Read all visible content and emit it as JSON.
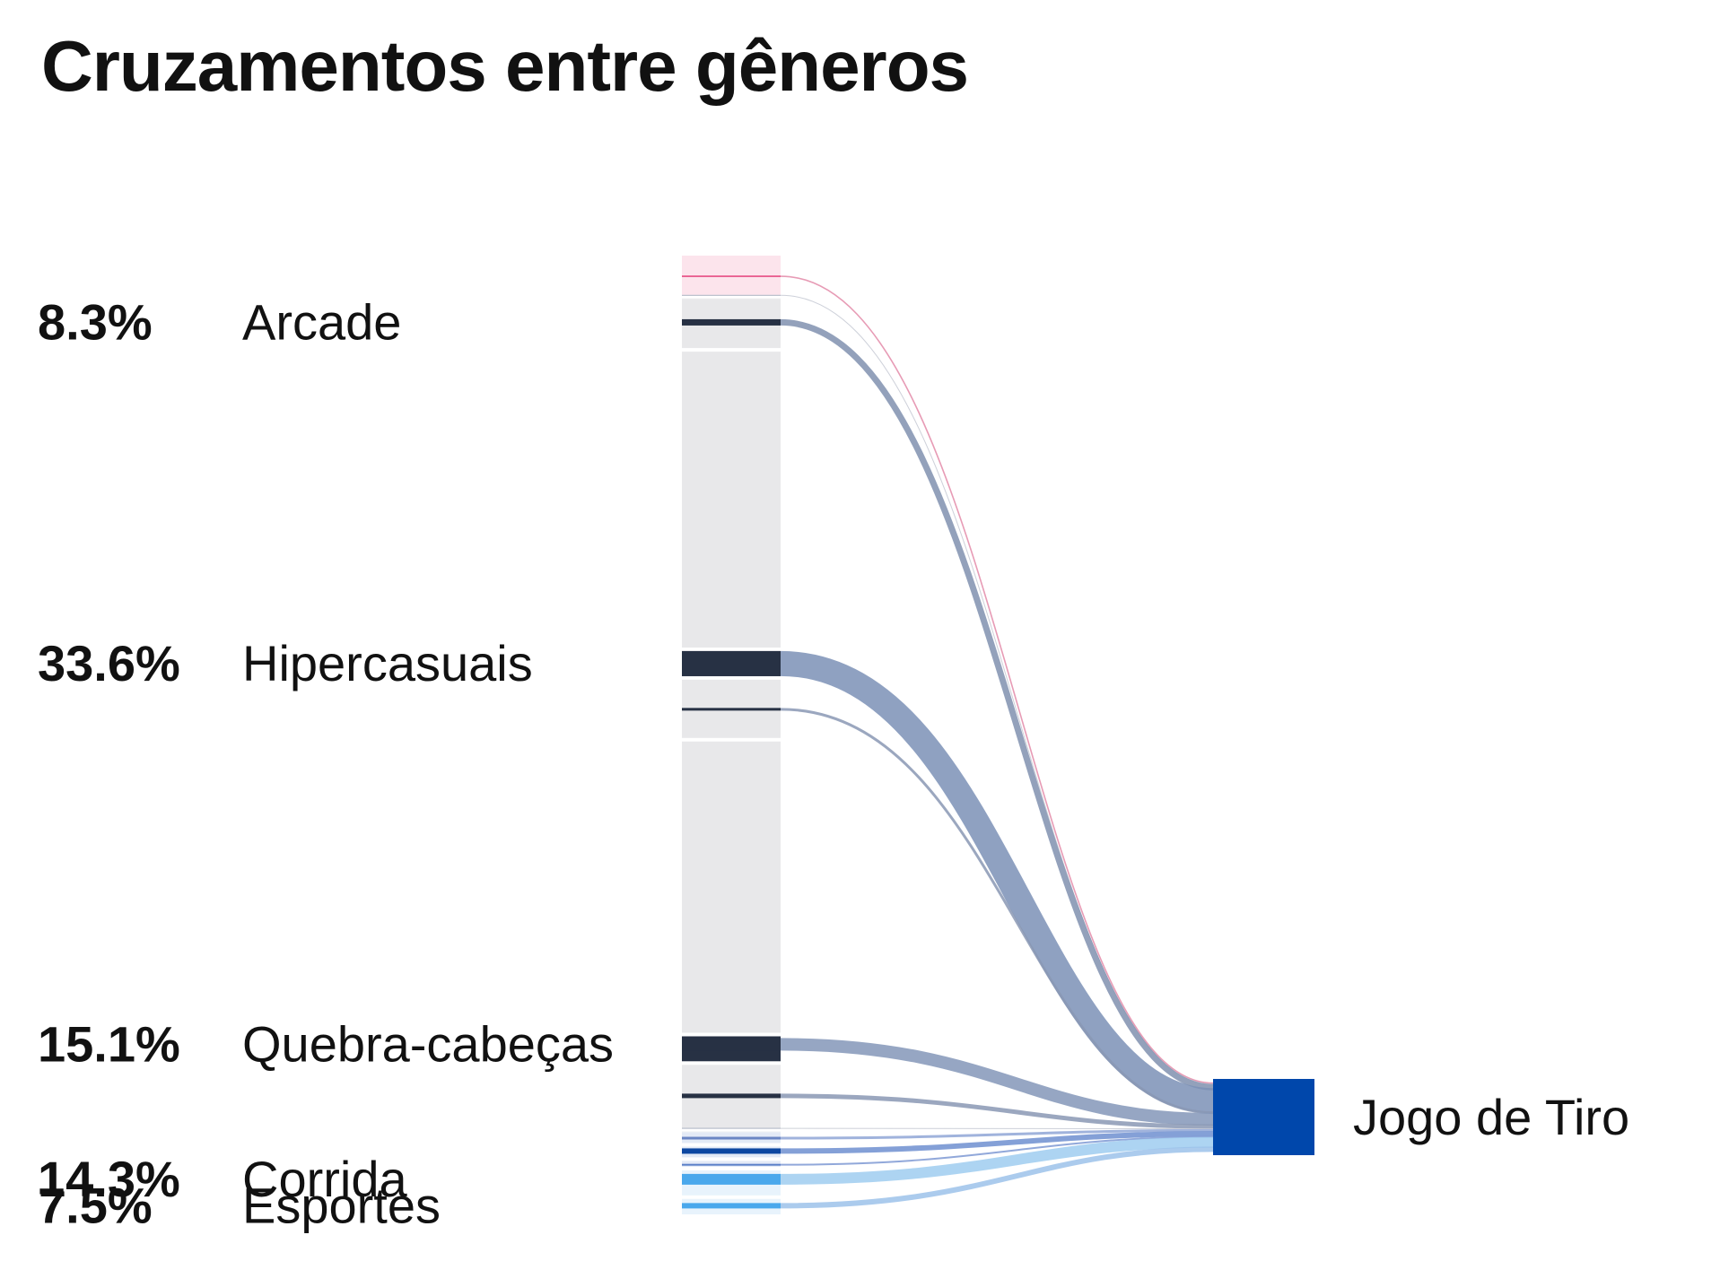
{
  "title": "Cruzamentos entre gêneros",
  "chart_data": {
    "type": "sankey",
    "title": "Cruzamentos entre gêneros",
    "target": {
      "label": "Jogo de Tiro",
      "color": "#0047ab"
    },
    "labeled_sources": [
      {
        "percent": "8.3%",
        "label": "Arcade"
      },
      {
        "percent": "33.6%",
        "label": "Hipercasuais"
      },
      {
        "percent": "15.1%",
        "label": "Quebra-cabeças"
      },
      {
        "percent": "14.3%",
        "label": "Corrida"
      },
      {
        "percent": "7.5%",
        "label": "Esportes"
      }
    ],
    "flows": [
      {
        "label": "",
        "percent": "",
        "value": 0.3,
        "group_value": 4.5,
        "color": "#e64980",
        "band_color": "#fce4ec",
        "link_color": "#e38aa8",
        "stroke": 1.6
      },
      {
        "label": "",
        "percent": "",
        "value": 0.1,
        "group_value": 0.1,
        "color": "#aab0c0",
        "band_color": "#e8e8ea",
        "link_color": "#c4c8d2",
        "stroke": 1
      },
      {
        "label": "Arcade",
        "percent": "8.3%",
        "value": 8.3,
        "group_value": 5.5,
        "color": "#273144",
        "band_color": "#e8e8ea",
        "link_color": "#8091af",
        "stroke": 7
      },
      {
        "label": "",
        "percent": "",
        "value": 0,
        "group_value": 31.5,
        "color": "#e8e8ea",
        "band_color": "#e8e8ea",
        "link_color": "#e8e8ea",
        "stroke": 0
      },
      {
        "label": "Hipercasuais",
        "percent": "33.6%",
        "value": 33.6,
        "group_value": 3,
        "color": "#273144",
        "band_color": "#273144",
        "link_color": "#7b90b6",
        "stroke": 28
      },
      {
        "label": "",
        "percent": "",
        "value": 1.5,
        "group_value": 6.5,
        "color": "#273144",
        "band_color": "#e8e8ea",
        "link_color": "#8a98b4",
        "stroke": 3
      },
      {
        "label": "",
        "percent": "",
        "value": 0,
        "group_value": 31,
        "color": "#e8e8ea",
        "band_color": "#e8e8ea",
        "link_color": "#e8e8ea",
        "stroke": 0
      },
      {
        "label": "Quebra-cabeças",
        "percent": "15.1%",
        "value": 15.1,
        "group_value": 3,
        "color": "#273144",
        "band_color": "#273144",
        "link_color": "#8497b8",
        "stroke": 14
      },
      {
        "label": "",
        "percent": "",
        "value": 2.5,
        "group_value": 7,
        "color": "#273144",
        "band_color": "#e8e8ea",
        "link_color": "#8a98b4",
        "stroke": 5
      },
      {
        "label": "",
        "percent": "",
        "value": 0.1,
        "group_value": 0.1,
        "color": "#aab0c0",
        "band_color": "#eef0f3",
        "link_color": "#c4c8d2",
        "stroke": 1
      },
      {
        "label": "",
        "percent": "",
        "value": 1,
        "group_value": 1.5,
        "color": "#6b86c4",
        "band_color": "#e3eaf6",
        "link_color": "#8fa6d6",
        "stroke": 3
      },
      {
        "label": "",
        "percent": "",
        "value": 2,
        "group_value": 1.5,
        "color": "#0d47a1",
        "band_color": "#e3eaf6",
        "link_color": "#6f8fd0",
        "stroke": 6
      },
      {
        "label": "",
        "percent": "",
        "value": 0.5,
        "group_value": 1,
        "color": "#5a7fc8",
        "band_color": "#e3eaf6",
        "link_color": "#7e99d3",
        "stroke": 2
      },
      {
        "label": "Corrida",
        "percent": "14.3%",
        "value": 14.3,
        "group_value": 3,
        "color": "#4aa8ec",
        "band_color": "#e8f3fc",
        "link_color": "#9fcdf0",
        "stroke": 12
      },
      {
        "label": "Esportes",
        "percent": "7.5%",
        "value": 7.5,
        "group_value": 2,
        "color": "#4aa8ec",
        "band_color": "#e8f3fc",
        "link_color": "#9cc2ea",
        "stroke": 6
      }
    ]
  }
}
